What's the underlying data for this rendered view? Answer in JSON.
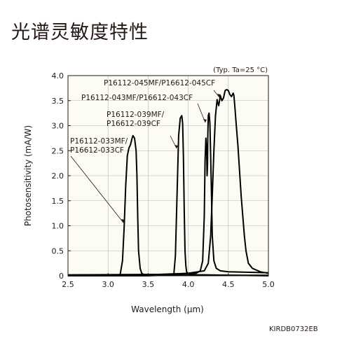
{
  "page": {
    "title": "光谱灵敏度特性",
    "figure_code": "KIRDB0732EB"
  },
  "chart_data": {
    "type": "line",
    "title": "",
    "xlabel": "Wavelength (μm)",
    "ylabel": "Photosensitivity (mA/W)",
    "annotation": "(Typ. Ta=25 °C)",
    "xlim": [
      2.5,
      5.0
    ],
    "ylim": [
      0,
      4.0
    ],
    "x_ticks": [
      "2.5",
      "3.0",
      "3.5",
      "4.0",
      "4.5",
      "5.0"
    ],
    "y_ticks": [
      "0",
      "0.5",
      "1.0",
      "1.5",
      "2.0",
      "2.5",
      "3.0",
      "3.5",
      "4.0"
    ],
    "grid": true,
    "background": "#fcfbf4",
    "line_color": "#000000",
    "series": [
      {
        "name": "P16112-033MF/P16612-033CF",
        "label_lines": [
          "P16112-033MF/",
          "P16612-033CF"
        ],
        "x": [
          2.5,
          3.0,
          3.15,
          3.18,
          3.2,
          3.22,
          3.24,
          3.26,
          3.28,
          3.3,
          3.31,
          3.33,
          3.35,
          3.36,
          3.37,
          3.38,
          3.4,
          3.42,
          3.45,
          3.5,
          4.0,
          5.0
        ],
        "y": [
          0,
          0,
          0.02,
          0.3,
          0.95,
          1.8,
          2.4,
          2.55,
          2.62,
          2.75,
          2.8,
          2.75,
          2.5,
          2.0,
          1.2,
          0.5,
          0.15,
          0.05,
          0.02,
          0.01,
          0.01,
          0.01
        ]
      },
      {
        "name": "P16112-039MF/P16612-039CF",
        "label_lines": [
          "P16112-039MF/",
          "P16612-039CF"
        ],
        "x": [
          2.5,
          3.5,
          3.82,
          3.84,
          3.86,
          3.88,
          3.9,
          3.92,
          3.93,
          3.94,
          3.95,
          3.96,
          3.97,
          3.98,
          4.0,
          4.02,
          4.05,
          4.2,
          5.0
        ],
        "y": [
          0,
          0,
          0.02,
          0.4,
          1.6,
          2.8,
          3.15,
          3.2,
          3.05,
          2.4,
          1.3,
          0.5,
          0.2,
          0.08,
          0.03,
          0.02,
          0.02,
          0.02,
          0.0
        ]
      },
      {
        "name": "P16112-043MF/P16612-043CF",
        "label_lines": [
          "P16112-043MF/P16612-043CF"
        ],
        "x": [
          2.5,
          3.8,
          4.0,
          4.1,
          4.15,
          4.18,
          4.2,
          4.21,
          4.22,
          4.23,
          4.235,
          4.24,
          4.245,
          4.25,
          4.26,
          4.27,
          4.28,
          4.29,
          4.3,
          4.32,
          4.35,
          4.4,
          4.5,
          5.0
        ],
        "y": [
          0.02,
          0.03,
          0.04,
          0.05,
          0.1,
          0.3,
          1.2,
          2.3,
          2.75,
          2.5,
          2.0,
          2.2,
          2.85,
          3.2,
          3.25,
          3.05,
          2.4,
          1.6,
          0.8,
          0.3,
          0.15,
          0.1,
          0.08,
          0.06
        ]
      },
      {
        "name": "P16112-045MF/P16612-045CF",
        "label_lines": [
          "P16112-045MF/P16612-045CF"
        ],
        "x": [
          2.5,
          3.5,
          4.0,
          4.2,
          4.25,
          4.28,
          4.3,
          4.32,
          4.34,
          4.36,
          4.37,
          4.38,
          4.4,
          4.42,
          4.44,
          4.46,
          4.48,
          4.5,
          4.52,
          4.54,
          4.56,
          4.57,
          4.58,
          4.6,
          4.62,
          4.64,
          4.66,
          4.68,
          4.7,
          4.72,
          4.75,
          4.8,
          4.9,
          5.0
        ],
        "y": [
          0.0,
          0.02,
          0.05,
          0.1,
          0.25,
          0.8,
          1.6,
          2.5,
          3.2,
          3.52,
          3.45,
          3.4,
          3.6,
          3.5,
          3.55,
          3.7,
          3.72,
          3.7,
          3.62,
          3.58,
          3.65,
          3.6,
          3.4,
          3.0,
          2.6,
          2.1,
          1.6,
          1.2,
          0.8,
          0.5,
          0.25,
          0.15,
          0.08,
          0.05
        ]
      }
    ]
  }
}
